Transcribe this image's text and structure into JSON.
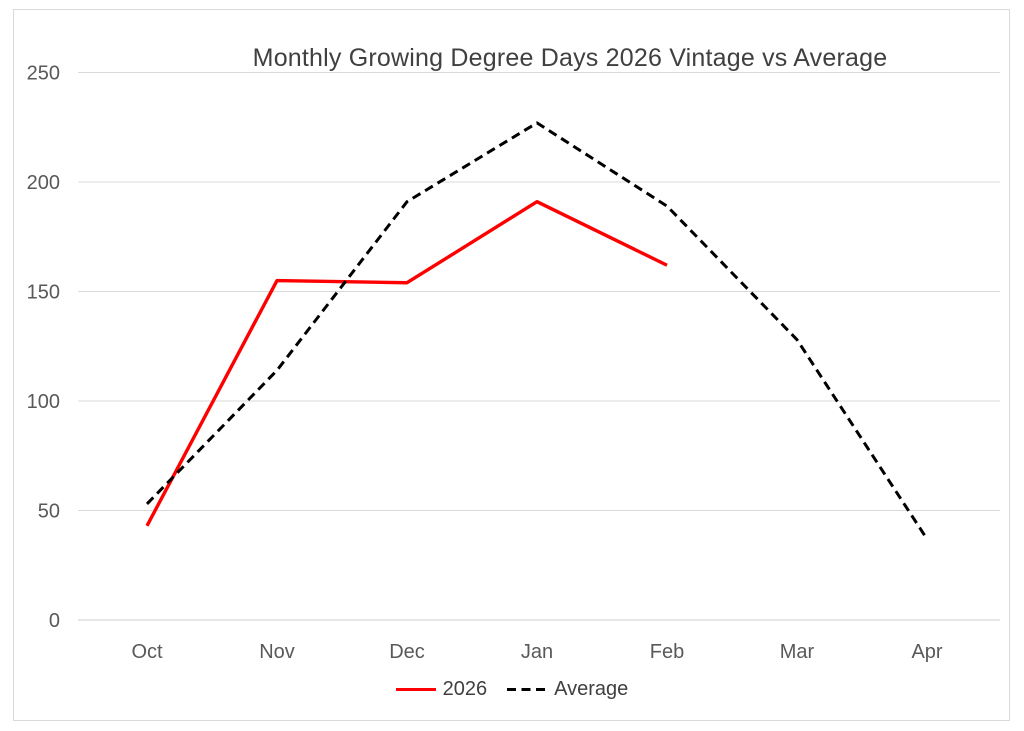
{
  "chart_data": {
    "type": "line",
    "title": "Monthly Growing Degree Days 2026 Vintage vs Average",
    "categories": [
      "Oct",
      "Nov",
      "Dec",
      "Jan",
      "Feb",
      "Mar",
      "Apr"
    ],
    "series": [
      {
        "name": "2026",
        "color": "#ff0000",
        "style": "solid",
        "values": [
          43,
          155,
          154,
          191,
          162,
          null,
          null
        ]
      },
      {
        "name": "Average",
        "color": "#000000",
        "style": "dashed",
        "values": [
          53,
          114,
          191,
          227,
          189,
          128,
          37
        ]
      }
    ],
    "y_ticks": [
      0,
      50,
      100,
      150,
      200,
      250
    ],
    "ylim": [
      0,
      250
    ],
    "xlabel": "",
    "ylabel": "",
    "grid": true,
    "grid_color": "#d9d9d9",
    "axis_label_color": "#595959",
    "legend_position": "bottom"
  }
}
